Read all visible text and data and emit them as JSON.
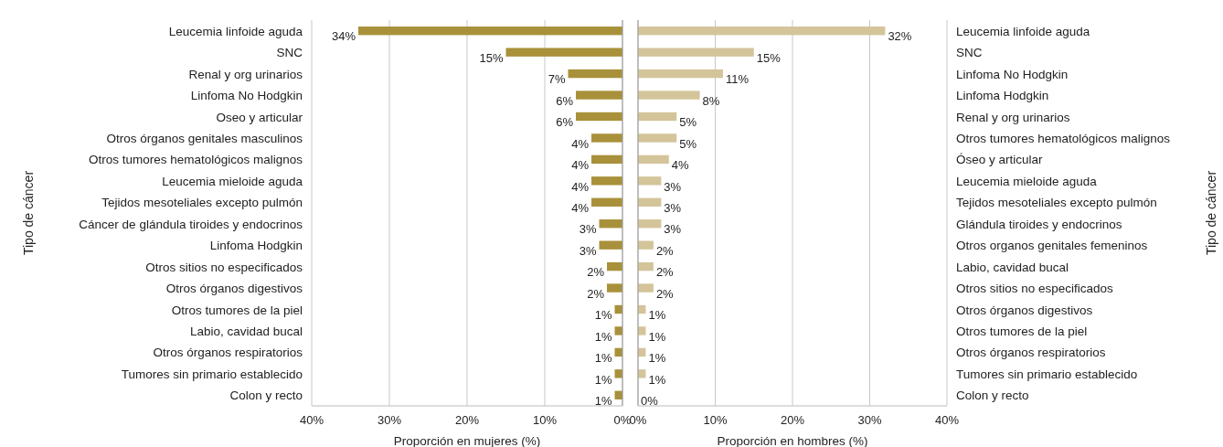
{
  "chart_data": [
    {
      "type": "bar",
      "orientation": "horizontal",
      "xlabel": "Proporción en mujeres (%)",
      "ylabel": "Tipo de cáncer",
      "categories": [
        "Leucemia linfoide aguda",
        "SNC",
        "Renal y org urinarios",
        "Linfoma No Hodgkin",
        "Oseo y articular",
        "Otros órganos genitales masculinos",
        "Otros tumores hematológicos malignos",
        "Leucemia mieloide aguda",
        "Tejidos mesoteliales excepto pulmón",
        "Cáncer de glándula tiroides y endocrinos",
        "Linfoma Hodgkin",
        "Otros sitios no especificados",
        "Otros órganos digestivos",
        "Otros tumores de la piel",
        "Labio, cavidad bucal",
        "Otros órganos respiratorios",
        "Tumores sin primario establecido",
        "Colon y recto"
      ],
      "values": [
        34,
        15,
        7,
        6,
        6,
        4,
        4,
        4,
        4,
        3,
        3,
        2,
        2,
        1,
        1,
        1,
        1,
        1
      ],
      "value_labels": [
        "34%",
        "15%",
        "7%",
        "6%",
        "6%",
        "4%",
        "4%",
        "4%",
        "4%",
        "3%",
        "3%",
        "2%",
        "2%",
        "1%",
        "1%",
        "1%",
        "1%",
        "1%"
      ],
      "color": "#a8913a",
      "xlim": [
        40,
        0
      ],
      "xticks": [
        {
          "value": 40,
          "label": "40%"
        },
        {
          "value": 30,
          "label": "30%"
        },
        {
          "value": 20,
          "label": "20%"
        },
        {
          "value": 10,
          "label": "10%"
        },
        {
          "value": 0,
          "label": "0%"
        }
      ],
      "grid": "x"
    },
    {
      "type": "bar",
      "orientation": "horizontal",
      "xlabel": "Proporción en hombres (%)",
      "ylabel": "Tipo de cáncer",
      "categories": [
        "Leucemia linfoide aguda",
        "SNC",
        "Linfoma No Hodgkin",
        "Linfoma Hodgkin",
        "Renal y org urinarios",
        "Otros tumores hematológicos malignos",
        "Óseo y articular",
        "Leucemia mieloide aguda",
        "Tejidos mesoteliales excepto pulmón",
        "Glándula tiroides y endocrinos",
        "Otros organos genitales femeninos",
        "Labio, cavidad bucal",
        "Otros sitios no especificados",
        "Otros órganos digestivos",
        "Otros tumores de la piel",
        "Otros órganos respiratorios",
        "Tumores sin primario establecido",
        "Colon y recto"
      ],
      "values": [
        32,
        15,
        11,
        8,
        5,
        5,
        4,
        3,
        3,
        3,
        2,
        2,
        2,
        1,
        1,
        1,
        1,
        0
      ],
      "value_labels": [
        "32%",
        "15%",
        "11%",
        "8%",
        "5%",
        "5%",
        "4%",
        "3%",
        "3%",
        "3%",
        "2%",
        "2%",
        "2%",
        "1%",
        "1%",
        "1%",
        "1%",
        "0%"
      ],
      "color": "#d4c49a",
      "xlim": [
        0,
        40
      ],
      "xticks": [
        {
          "value": 0,
          "label": "0%"
        },
        {
          "value": 10,
          "label": "10%"
        },
        {
          "value": 20,
          "label": "20%"
        },
        {
          "value": 30,
          "label": "30%"
        },
        {
          "value": 40,
          "label": "40%"
        }
      ],
      "grid": "x"
    }
  ]
}
